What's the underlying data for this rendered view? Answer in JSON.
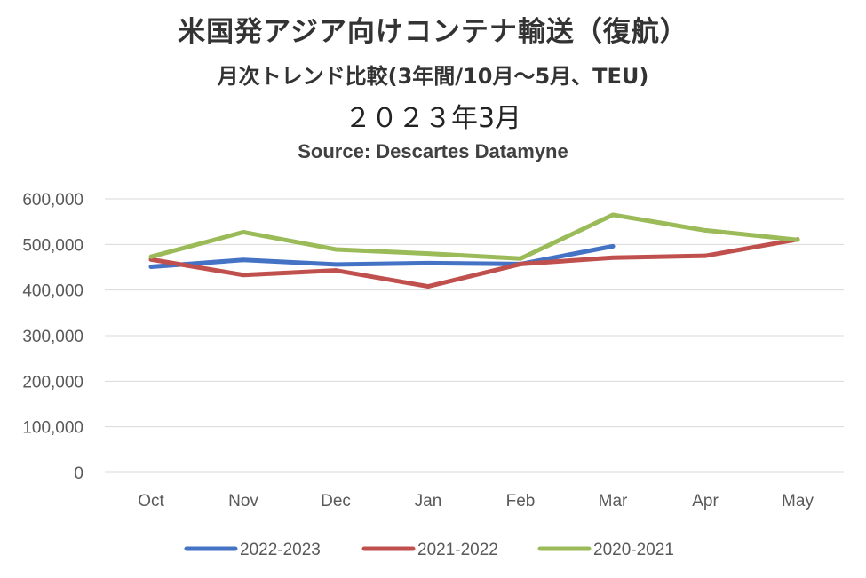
{
  "chart_data": {
    "type": "line",
    "title": "米国発アジア向けコンテナ輸送（復航）",
    "subtitle": "月次トレンド比較(3年間/10月～5月、TEU)",
    "date_label": "２０２３年3月",
    "source": "Source: Descartes Datamyne",
    "categories": [
      "Oct",
      "Nov",
      "Dec",
      "Jan",
      "Feb",
      "Mar",
      "Apr",
      "May"
    ],
    "ylim": [
      0,
      600000
    ],
    "yticks": [
      "0",
      "100,000",
      "200,000",
      "300,000",
      "400,000",
      "500,000",
      "600,000"
    ],
    "grid": true,
    "legend_position": "bottom",
    "series": [
      {
        "name": "2022-2023",
        "color": "#4472C4",
        "values": [
          451000,
          466000,
          456000,
          459000,
          457000,
          496000,
          null,
          null
        ]
      },
      {
        "name": "2021-2022",
        "color": "#C0504D",
        "values": [
          467000,
          433000,
          443000,
          408000,
          457000,
          471000,
          475000,
          511000
        ]
      },
      {
        "name": "2020-2021",
        "color": "#9BBB59",
        "values": [
          473000,
          527000,
          489000,
          480000,
          469000,
          565000,
          531000,
          510000
        ]
      }
    ]
  }
}
